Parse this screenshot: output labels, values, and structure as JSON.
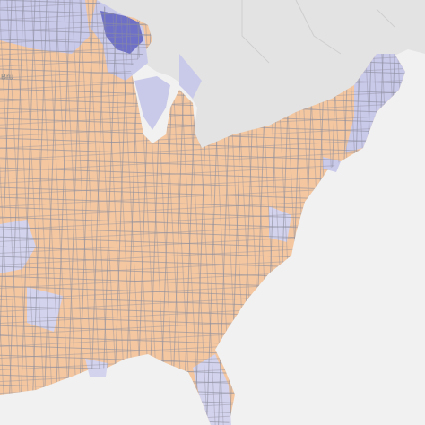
{
  "labels": [
    "Bru"
  ]
}
